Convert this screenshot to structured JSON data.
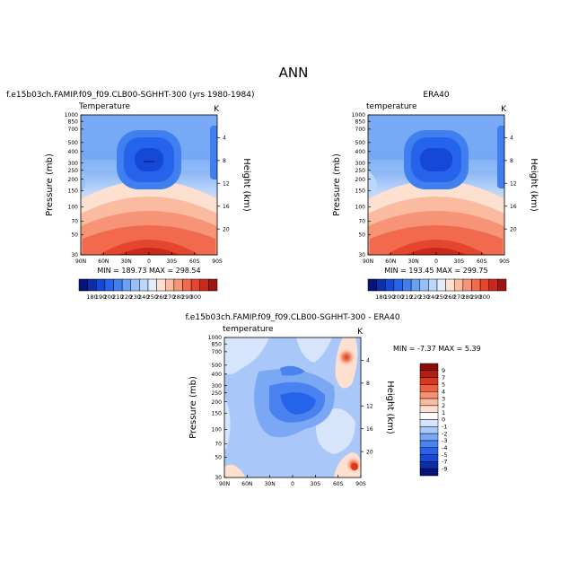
{
  "figure": {
    "title": "ANN"
  },
  "colors": {
    "temperature_scale": [
      "#07137a",
      "#0b2fa8",
      "#1548d6",
      "#2563eb",
      "#3f7ff0",
      "#6b9ff3",
      "#94bff7",
      "#bcd7fb",
      "#e2ecfb",
      "#fde0d0",
      "#fbbba0",
      "#f79478",
      "#f26a4e",
      "#e5452c",
      "#c9281a",
      "#9e130f"
    ],
    "difference_scale": [
      "#07137a",
      "#0b2fa8",
      "#1548d6",
      "#2563eb",
      "#4a82f0",
      "#7aa8f5",
      "#a9c8f9",
      "#d6e5fb",
      "#ffffff",
      "#fde0d0",
      "#fbbba0",
      "#f7916f",
      "#ef5f40",
      "#d9381f",
      "#b31d12",
      "#8a0c09"
    ]
  },
  "chart_data": [
    {
      "type": "heatmap",
      "title": "f.e15b03ch.FAMIP.f09_f09.CLB00-SGHHT-300 (yrs 1980-1984)",
      "panel_label_left": "Temperature",
      "panel_label_right": "K",
      "xlabel": "",
      "ylabel": "Pressure  (mb)",
      "ylabel_right": "Height  (km)",
      "x_ticks": [
        "90N",
        "60N",
        "30N",
        "0",
        "30S",
        "60S",
        "90S"
      ],
      "y_ticks": [
        "30",
        "50",
        "70",
        "100",
        "150",
        "200",
        "250",
        "300",
        "400",
        "500",
        "700",
        "850",
        "1000"
      ],
      "y_ticks_right": [
        "20",
        "16",
        "12",
        "8",
        "4"
      ],
      "ylim": [
        1000,
        30
      ],
      "stats_text": "MIN = 189.73   MAX = 298.54",
      "min": 189.73,
      "max": 298.54,
      "colorbar_labels": [
        "180",
        "190",
        "200",
        "210",
        "220",
        "230",
        "240",
        "250",
        "260",
        "270",
        "280",
        "290",
        "300"
      ]
    },
    {
      "type": "heatmap",
      "title": "ERA40",
      "panel_label_left": "temperature",
      "panel_label_right": "K",
      "xlabel": "",
      "ylabel": "Pressure  (mb)",
      "ylabel_right": "Height  (km)",
      "x_ticks": [
        "90N",
        "60N",
        "30N",
        "0",
        "30S",
        "60S",
        "90S"
      ],
      "y_ticks": [
        "30",
        "50",
        "70",
        "100",
        "150",
        "200",
        "250",
        "300",
        "400",
        "500",
        "700",
        "850",
        "1000"
      ],
      "y_ticks_right": [
        "20",
        "16",
        "12",
        "8",
        "4"
      ],
      "ylim": [
        1000,
        30
      ],
      "stats_text": "MIN = 193.45   MAX = 299.75",
      "min": 193.45,
      "max": 299.75,
      "colorbar_labels": [
        "180",
        "190",
        "200",
        "210",
        "220",
        "230",
        "240",
        "250",
        "260",
        "270",
        "280",
        "290",
        "300"
      ]
    },
    {
      "type": "heatmap",
      "title": "f.e15b03ch.FAMIP.f09_f09.CLB00-SGHHT-300 - ERA40",
      "panel_label_left": "temperature",
      "panel_label_right": "K",
      "xlabel": "",
      "ylabel": "Pressure  (mb)",
      "ylabel_right": "Height  (km)",
      "x_ticks": [
        "90N",
        "60N",
        "30N",
        "0",
        "30S",
        "60S",
        "90S"
      ],
      "y_ticks": [
        "30",
        "50",
        "70",
        "100",
        "150",
        "200",
        "250",
        "300",
        "400",
        "500",
        "700",
        "850",
        "1000"
      ],
      "y_ticks_right": [
        "20",
        "16",
        "12",
        "8",
        "4"
      ],
      "ylim": [
        1000,
        30
      ],
      "stats_text": "MIN =   -7.37   MAX =     5.39",
      "min": -7.37,
      "max": 5.39,
      "colorbar_labels": [
        "9",
        "7",
        "5",
        "4",
        "3",
        "2",
        "1",
        "0",
        "-1",
        "-2",
        "-3",
        "-4",
        "-5",
        "-7",
        "-9"
      ]
    }
  ]
}
